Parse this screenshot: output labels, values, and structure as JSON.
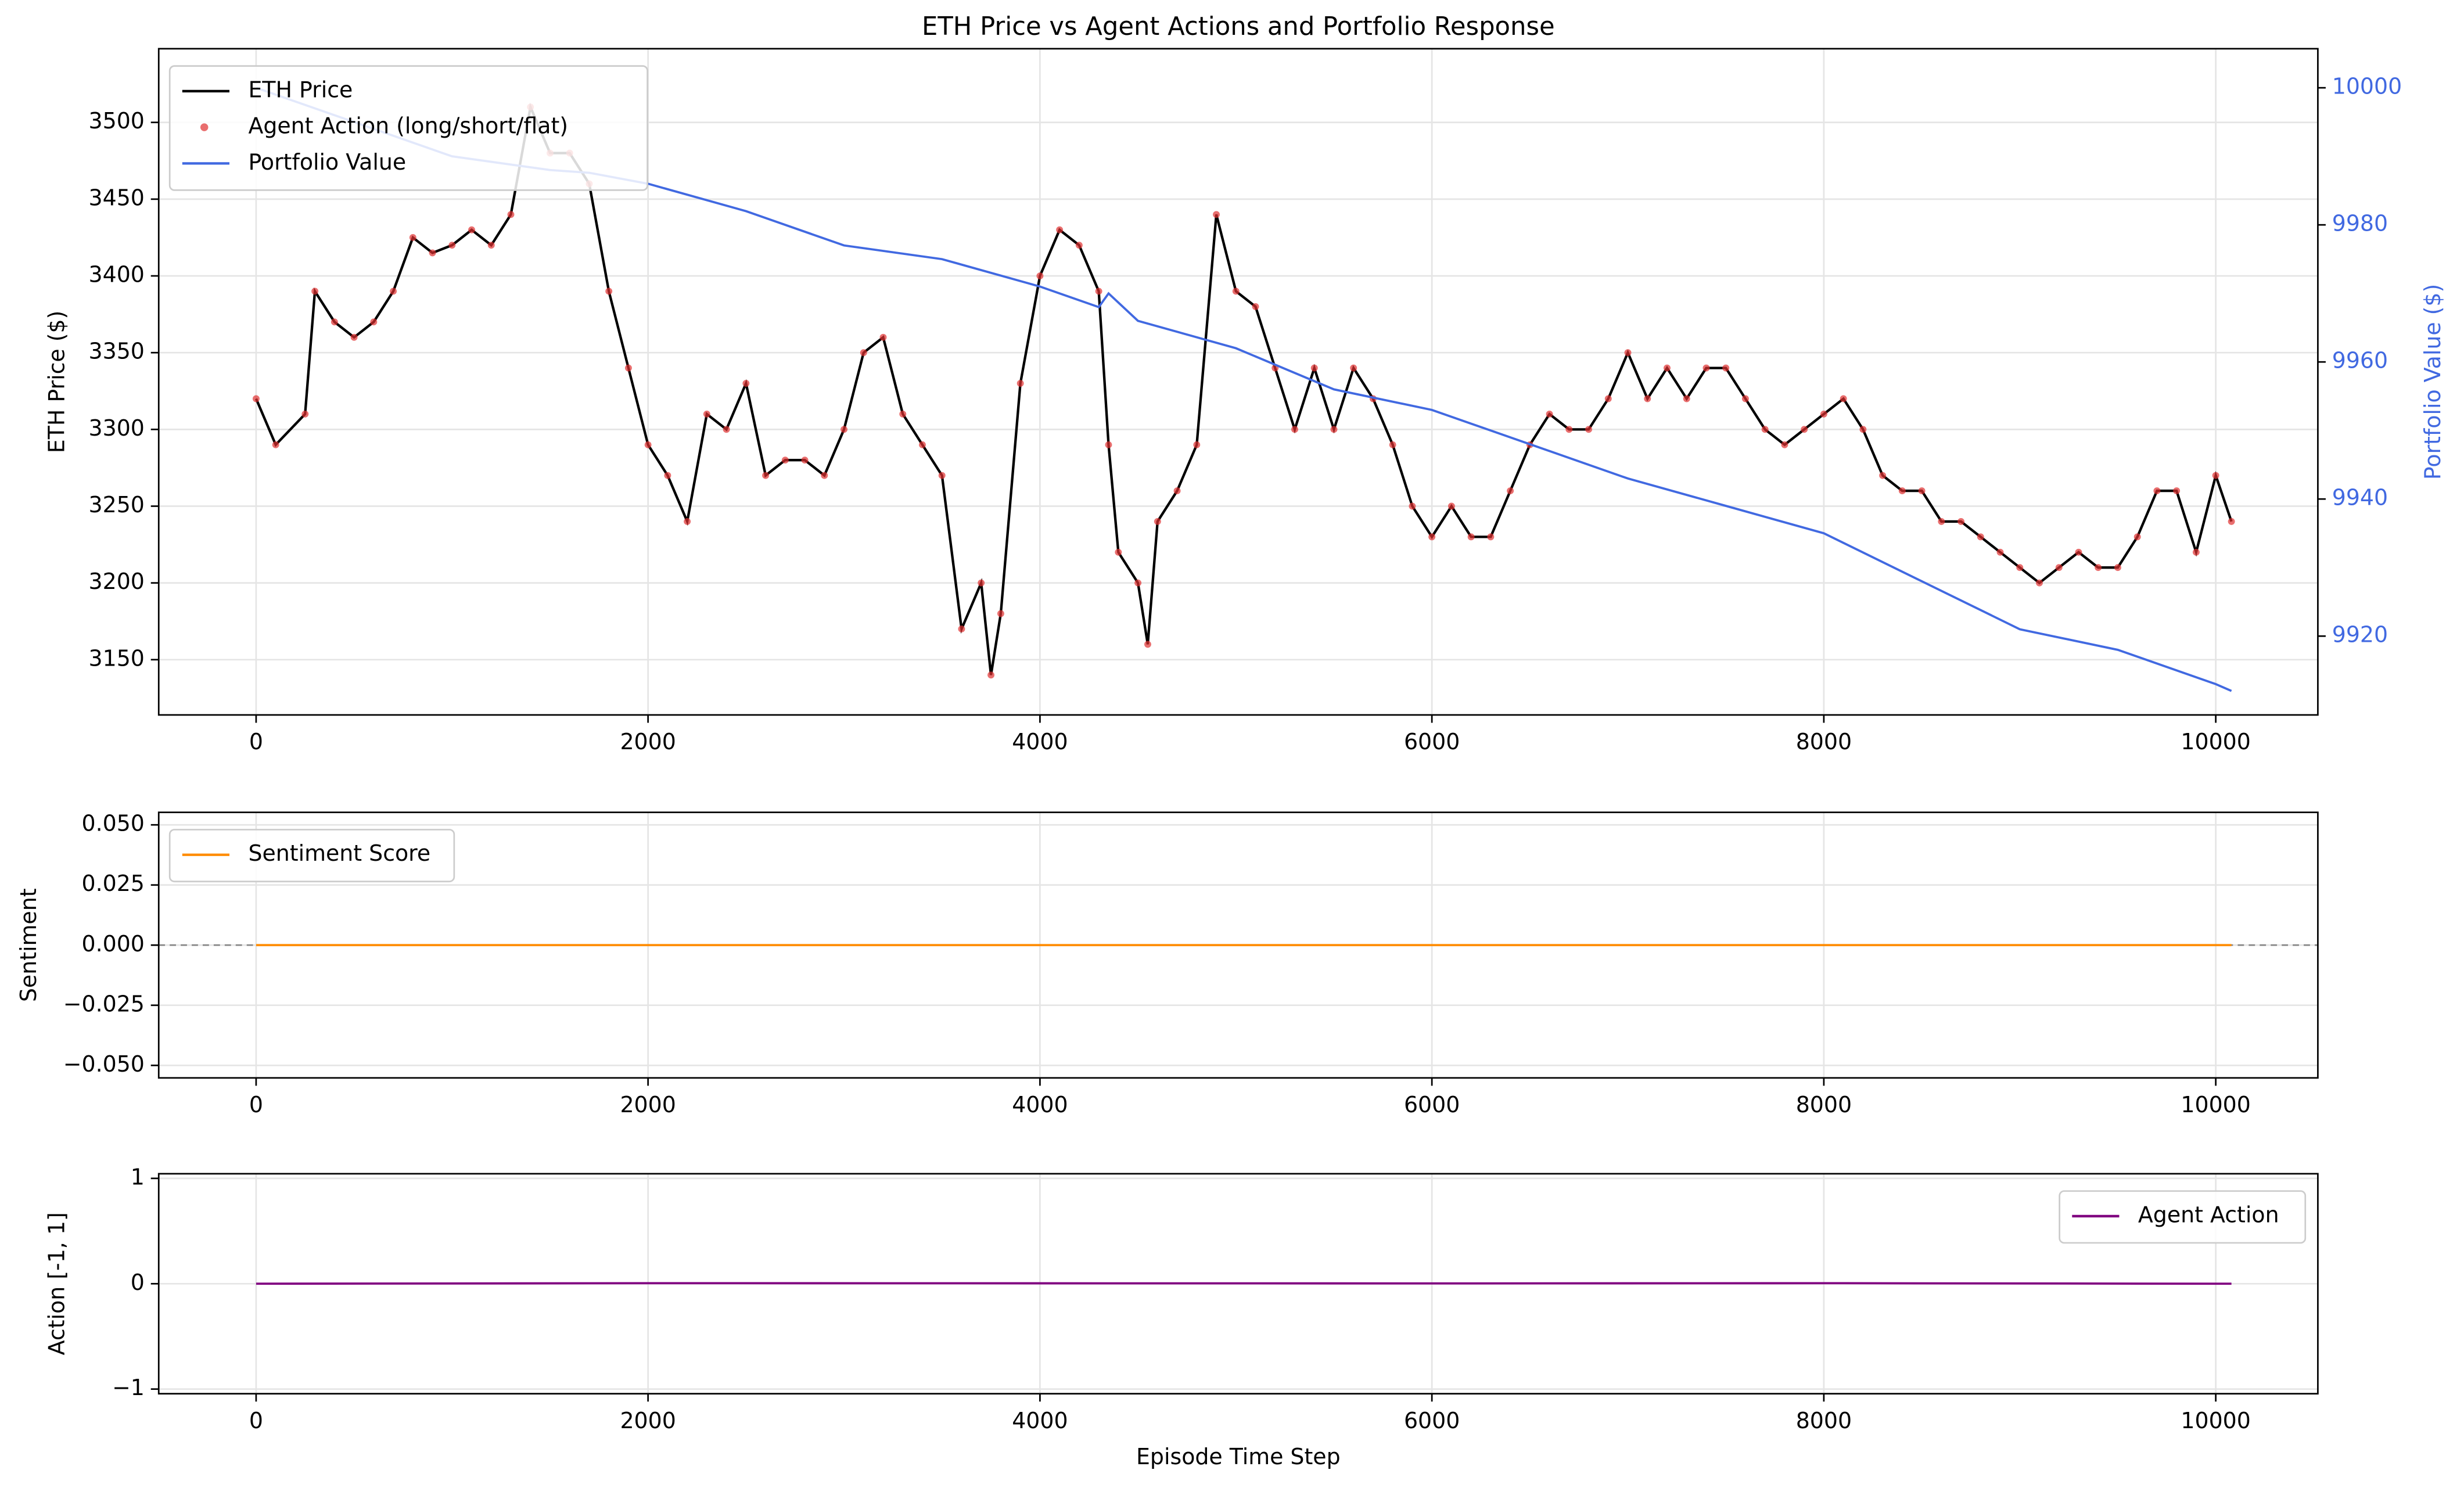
{
  "chart_data": [
    {
      "type": "line",
      "title": "ETH Price vs Agent Actions and Portfolio Response",
      "ylabel": "ETH Price ($)",
      "y2label": "Portfolio Value ($)",
      "y2color": "#4169e1",
      "xlim": [
        -497,
        10521
      ],
      "xticks": [
        0,
        2000,
        4000,
        6000,
        8000,
        10000
      ],
      "ylim": [
        3114,
        3548
      ],
      "yticks": [
        3150,
        3200,
        3250,
        3300,
        3350,
        3400,
        3450,
        3500
      ],
      "y2lim": [
        9908.5,
        10005.7
      ],
      "y2ticks": [
        9920,
        9940,
        9960,
        9980,
        10000
      ],
      "grid": true,
      "legend": "upper left",
      "series": [
        {
          "name": "ETH Price",
          "type": "line",
          "color": "#000000",
          "x": [
            0,
            100,
            250,
            300,
            400,
            500,
            600,
            700,
            800,
            900,
            1000,
            1100,
            1200,
            1300,
            1400,
            1500,
            1600,
            1700,
            1800,
            1900,
            2000,
            2100,
            2200,
            2300,
            2400,
            2500,
            2600,
            2700,
            2800,
            2900,
            3000,
            3100,
            3200,
            3300,
            3400,
            3500,
            3600,
            3700,
            3750,
            3800,
            3900,
            4000,
            4100,
            4200,
            4300,
            4350,
            4400,
            4500,
            4550,
            4600,
            4700,
            4800,
            4900,
            5000,
            5100,
            5200,
            5300,
            5400,
            5500,
            5600,
            5700,
            5800,
            5900,
            6000,
            6100,
            6200,
            6300,
            6400,
            6500,
            6600,
            6700,
            6800,
            6900,
            7000,
            7100,
            7200,
            7300,
            7400,
            7500,
            7600,
            7700,
            7800,
            7900,
            8000,
            8100,
            8200,
            8300,
            8400,
            8500,
            8600,
            8700,
            8800,
            8900,
            9000,
            9100,
            9200,
            9300,
            9400,
            9500,
            9600,
            9700,
            9800,
            9900,
            10000,
            10080
          ],
          "values": [
            3320,
            3290,
            3310,
            3390,
            3370,
            3360,
            3370,
            3390,
            3425,
            3415,
            3420,
            3430,
            3420,
            3440,
            3510,
            3480,
            3480,
            3460,
            3390,
            3340,
            3290,
            3270,
            3240,
            3310,
            3300,
            3330,
            3270,
            3280,
            3280,
            3270,
            3300,
            3350,
            3360,
            3310,
            3290,
            3270,
            3170,
            3200,
            3140,
            3180,
            3330,
            3400,
            3430,
            3420,
            3390,
            3290,
            3220,
            3200,
            3160,
            3240,
            3260,
            3290,
            3440,
            3390,
            3380,
            3340,
            3300,
            3340,
            3300,
            3340,
            3320,
            3290,
            3250,
            3230,
            3250,
            3230,
            3230,
            3260,
            3290,
            3310,
            3300,
            3300,
            3320,
            3350,
            3320,
            3340,
            3320,
            3340,
            3340,
            3320,
            3300,
            3290,
            3300,
            3310,
            3320,
            3300,
            3270,
            3260,
            3260,
            3240,
            3240,
            3230,
            3220,
            3210,
            3200,
            3210,
            3220,
            3210,
            3210,
            3230,
            3260,
            3260,
            3220,
            3270,
            3240
          ]
        },
        {
          "name": "Agent Action (long/short/flat)",
          "type": "scatter",
          "color": "#e03030",
          "x": [
            0,
            100,
            250,
            300,
            400,
            500,
            600,
            700,
            800,
            900,
            1000,
            1100,
            1200,
            1300,
            1400,
            1500,
            1600,
            1700,
            1800,
            1900,
            2000,
            2100,
            2200,
            2300,
            2400,
            2500,
            2600,
            2700,
            2800,
            2900,
            3000,
            3100,
            3200,
            3300,
            3400,
            3500,
            3600,
            3700,
            3750,
            3800,
            3900,
            4000,
            4100,
            4200,
            4300,
            4350,
            4400,
            4500,
            4550,
            4600,
            4700,
            4800,
            4900,
            5000,
            5100,
            5200,
            5300,
            5400,
            5500,
            5600,
            5700,
            5800,
            5900,
            6000,
            6100,
            6200,
            6300,
            6400,
            6500,
            6600,
            6700,
            6800,
            6900,
            7000,
            7100,
            7200,
            7300,
            7400,
            7500,
            7600,
            7700,
            7800,
            7900,
            8000,
            8100,
            8200,
            8300,
            8400,
            8500,
            8600,
            8700,
            8800,
            8900,
            9000,
            9100,
            9200,
            9300,
            9400,
            9500,
            9600,
            9700,
            9800,
            9900,
            10000,
            10080
          ],
          "values": [
            3320,
            3290,
            3310,
            3390,
            3370,
            3360,
            3370,
            3390,
            3425,
            3415,
            3420,
            3430,
            3420,
            3440,
            3510,
            3480,
            3480,
            3460,
            3390,
            3340,
            3290,
            3270,
            3240,
            3310,
            3300,
            3330,
            3270,
            3280,
            3280,
            3270,
            3300,
            3350,
            3360,
            3310,
            3290,
            3270,
            3170,
            3200,
            3140,
            3180,
            3330,
            3400,
            3430,
            3420,
            3390,
            3290,
            3220,
            3200,
            3160,
            3240,
            3260,
            3290,
            3440,
            3390,
            3380,
            3340,
            3300,
            3340,
            3300,
            3340,
            3320,
            3290,
            3250,
            3230,
            3250,
            3230,
            3230,
            3260,
            3290,
            3310,
            3300,
            3300,
            3320,
            3350,
            3320,
            3340,
            3320,
            3340,
            3340,
            3320,
            3300,
            3290,
            3300,
            3310,
            3320,
            3300,
            3270,
            3260,
            3260,
            3240,
            3240,
            3230,
            3220,
            3210,
            3200,
            3210,
            3220,
            3210,
            3210,
            3230,
            3260,
            3260,
            3220,
            3270,
            3240
          ]
        },
        {
          "name": "Portfolio Value",
          "type": "line",
          "axis": "y2",
          "color": "#4169e1",
          "x": [
            0,
            500,
            1000,
            1500,
            1700,
            2000,
            2500,
            3000,
            3500,
            4000,
            4300,
            4350,
            4500,
            5000,
            5500,
            6000,
            6500,
            7000,
            7500,
            8000,
            8500,
            9000,
            9500,
            10000,
            10080
          ],
          "values": [
            10000,
            9995,
            9990,
            9988,
            9987.6,
            9986,
            9982,
            9977,
            9975,
            9971,
            9968,
            9970,
            9966,
            9962,
            9956,
            9953,
            9948,
            9943,
            9939,
            9935,
            9928,
            9921,
            9918,
            9913,
            9912
          ]
        }
      ]
    },
    {
      "type": "line",
      "ylabel": "Sentiment",
      "xlim": [
        -497,
        10521
      ],
      "xticks": [
        0,
        2000,
        4000,
        6000,
        8000,
        10000
      ],
      "ylim": [
        -0.0552,
        0.0552
      ],
      "yticks": [
        {
          "value": -0.05,
          "label": "−0.050"
        },
        {
          "value": -0.025,
          "label": "−0.025"
        },
        {
          "value": 0,
          "label": "0.000"
        },
        {
          "value": 0.025,
          "label": "0.025"
        },
        {
          "value": 0.05,
          "label": "0.050"
        }
      ],
      "grid": true,
      "legend": "upper left",
      "series": [
        {
          "name": "Sentiment Score",
          "type": "line",
          "color": "#ff8c00",
          "x": [
            0,
            10080
          ],
          "values": [
            0,
            0
          ]
        }
      ]
    },
    {
      "type": "line",
      "ylabel": "Action [-1, 1]",
      "xlabel": "Episode Time Step",
      "xlim": [
        -497,
        10521
      ],
      "xticks": [
        0,
        2000,
        4000,
        6000,
        8000,
        10000
      ],
      "ylim": [
        -1.044,
        1.044
      ],
      "yticks": [
        {
          "value": -1,
          "label": "−1"
        },
        0,
        1
      ],
      "grid": true,
      "legend": "upper right",
      "series": [
        {
          "name": "Agent Action",
          "type": "line",
          "color": "#800080",
          "x": [
            0,
            2000,
            4000,
            6000,
            8000,
            10080
          ],
          "values": [
            0,
            0.005,
            0.004,
            0.003,
            0.005,
            0
          ]
        }
      ]
    }
  ]
}
